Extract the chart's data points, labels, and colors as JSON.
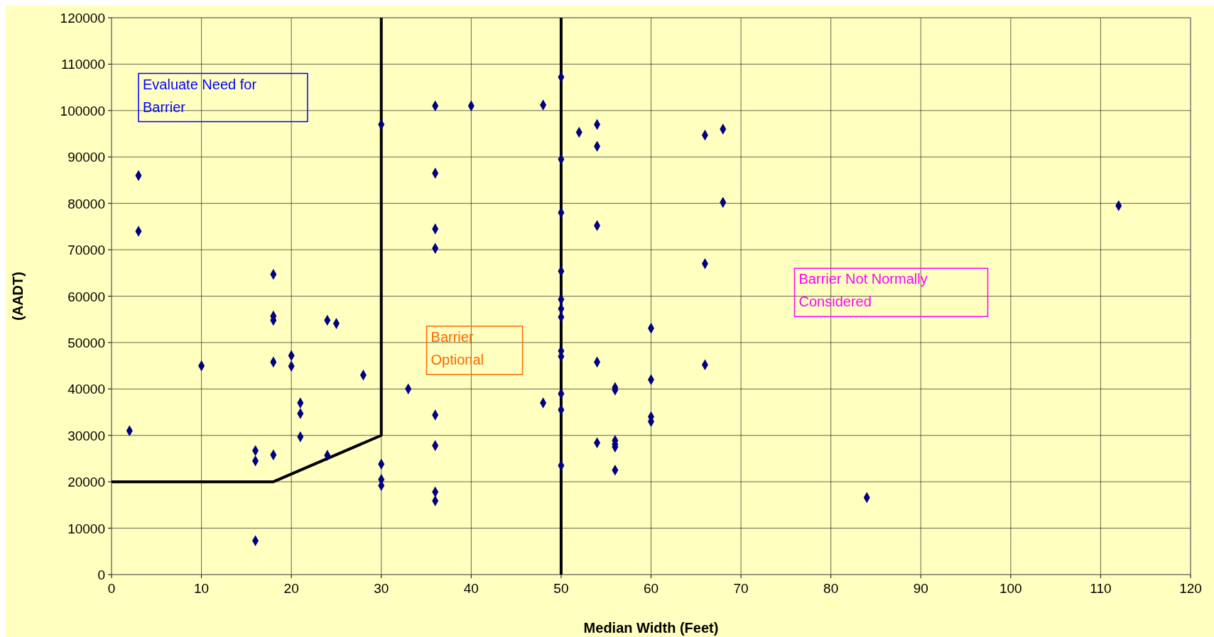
{
  "chart_data": {
    "type": "scatter",
    "xlabel": "Median Width (Feet)",
    "ylabel": "(AADT)",
    "xlim": [
      0,
      120
    ],
    "xticks": [
      0,
      10,
      20,
      30,
      40,
      50,
      60,
      70,
      80,
      90,
      100,
      110,
      120
    ],
    "ylim": [
      0,
      120000
    ],
    "yticks": [
      0,
      10000,
      20000,
      30000,
      40000,
      50000,
      60000,
      70000,
      80000,
      90000,
      100000,
      110000,
      120000
    ],
    "grid": true,
    "marker": "diamond",
    "ref_lines": [
      {
        "axis": "x",
        "value": 50,
        "color": "#000000"
      }
    ],
    "series": [
      {
        "color": "#000080",
        "x": [
          3,
          3,
          2,
          10,
          16,
          16,
          16,
          18,
          18,
          18,
          18,
          18,
          20,
          20,
          21,
          21,
          21,
          24,
          25,
          24,
          28,
          30,
          30,
          30,
          30,
          33,
          36,
          36,
          36,
          36,
          36,
          36,
          36,
          36,
          40,
          48,
          48,
          50,
          50,
          50,
          50,
          50,
          50,
          50,
          50,
          50,
          50,
          50,
          50,
          52,
          54,
          54,
          54,
          54,
          54,
          56,
          56,
          56,
          56,
          56,
          56,
          60,
          60,
          60,
          60,
          66,
          66,
          66,
          68,
          68,
          84,
          112
        ],
        "values": [
          86000,
          74000,
          31000,
          45000,
          26700,
          24500,
          7300,
          64700,
          55700,
          54800,
          45800,
          25800,
          47200,
          44900,
          37000,
          34700,
          29700,
          54800,
          54100,
          25700,
          43000,
          97000,
          23800,
          20500,
          19200,
          40000,
          101000,
          86500,
          74500,
          70300,
          34400,
          27800,
          17800,
          15900,
          101000,
          101200,
          37000,
          107200,
          89500,
          78000,
          65400,
          59300,
          57300,
          55500,
          48200,
          47000,
          39000,
          35500,
          23500,
          95300,
          97000,
          92300,
          75200,
          45800,
          28400,
          40300,
          39800,
          28900,
          28100,
          27500,
          22500,
          53100,
          42000,
          34000,
          33000,
          94700,
          67000,
          45200,
          96000,
          80200,
          16600,
          79500
        ]
      },
      {
        "type": "line",
        "color": "#000000",
        "marker": "none",
        "x": [
          0,
          18,
          30,
          30
        ],
        "values": [
          20000,
          20000,
          30000,
          120000
        ]
      }
    ],
    "annotations": [
      "Evaluate Need for Barrier",
      "Barrier Optional",
      "Barrier Not Normally Considered"
    ]
  }
}
